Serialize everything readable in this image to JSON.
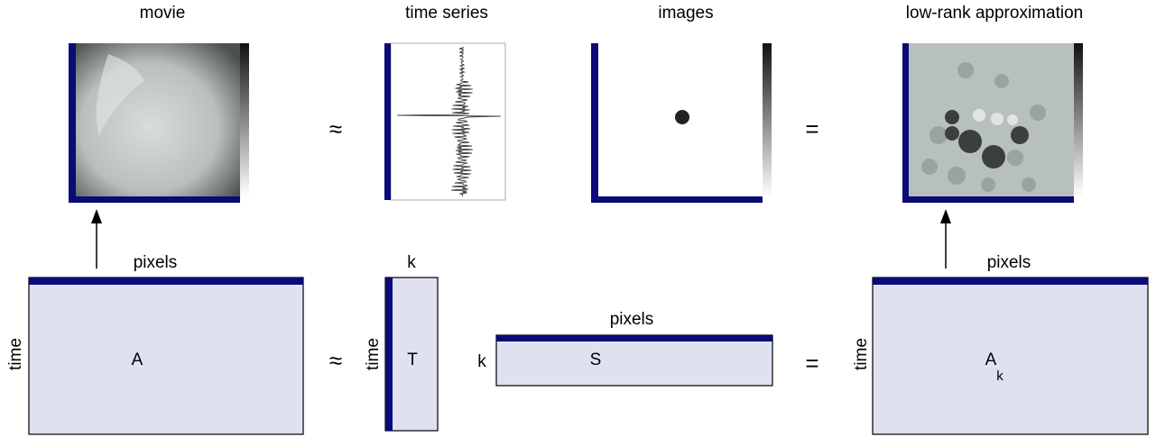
{
  "top_row": {
    "panels": [
      {
        "title": "movie"
      },
      {
        "title": "time series"
      },
      {
        "title": "images"
      },
      {
        "title": "low-rank approximation"
      }
    ],
    "operators": [
      "≈",
      "="
    ]
  },
  "bottom_row": {
    "matrices": [
      {
        "name": "A",
        "row_label": "time",
        "col_label": "pixels"
      },
      {
        "name": "T",
        "row_label": "time",
        "col_label": "k"
      },
      {
        "name": "S",
        "row_label": "k",
        "col_label": "pixels"
      },
      {
        "name": "A",
        "subscript": "k",
        "row_label": "time",
        "col_label": "pixels"
      }
    ],
    "operators": [
      "≈",
      "="
    ]
  }
}
